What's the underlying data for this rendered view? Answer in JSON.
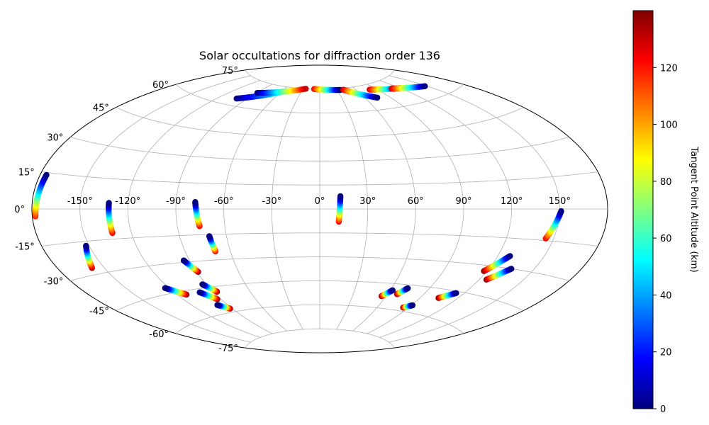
{
  "chart_data": {
    "type": "scatter",
    "projection": "aitoff",
    "title": "Solar occultations for diffraction order 136",
    "lon_ticks": [
      -150,
      -120,
      -90,
      -60,
      -30,
      0,
      30,
      60,
      90,
      120,
      150
    ],
    "lat_ticks": [
      -75,
      -60,
      -45,
      -30,
      -15,
      0,
      15,
      30,
      45,
      60,
      75
    ],
    "lon_tick_labels": [
      "-150°",
      "-120°",
      "-90°",
      "-60°",
      "-30°",
      "0°",
      "30°",
      "60°",
      "90°",
      "120°",
      "150°"
    ],
    "lat_tick_labels": [
      "-75°",
      "-60°",
      "-45°",
      "-30°",
      "-15°",
      "0°",
      "15°",
      "30°",
      "45°",
      "60°",
      "75°"
    ],
    "grid": true,
    "colorbar": {
      "label": "Tangent Point Altitude (km)",
      "colormap": "jet",
      "range": [
        0,
        140
      ],
      "ticks": [
        0,
        20,
        40,
        60,
        80,
        100,
        120
      ],
      "tick_labels": [
        "0",
        "20",
        "40",
        "60",
        "80",
        "100",
        "120"
      ]
    },
    "tracks": [
      {
        "lon": [
          -178,
          -176
        ],
        "lat": [
          -3,
          14
        ],
        "alt": [
          118,
          0
        ]
      },
      {
        "lon": [
          -132,
          -132
        ],
        "lat": [
          -12,
          3
        ],
        "alt": [
          125,
          0
        ]
      },
      {
        "lon": [
          -158,
          -152
        ],
        "lat": [
          -27,
          -17
        ],
        "alt": [
          135,
          0
        ]
      },
      {
        "lon": [
          -76,
          -78
        ],
        "lat": [
          -10,
          4
        ],
        "alt": [
          125,
          0
        ]
      },
      {
        "lon": [
          -70,
          -71
        ],
        "lat": [
          -25,
          -16
        ],
        "alt": [
          125,
          0
        ]
      },
      {
        "lon": [
          -89,
          -94
        ],
        "lat": [
          -36,
          -29
        ],
        "alt": [
          140,
          0
        ]
      },
      {
        "lon": [
          -113,
          -123
        ],
        "lat": [
          -47,
          -42
        ],
        "alt": [
          140,
          0
        ]
      },
      {
        "lon": [
          -87,
          -93
        ],
        "lat": [
          -48,
          -43
        ],
        "alt": [
          140,
          0
        ]
      },
      {
        "lon": [
          -93,
          -101
        ],
        "lat": [
          -52,
          -47
        ],
        "alt": [
          140,
          0
        ]
      },
      {
        "lon": [
          -92,
          -99
        ],
        "lat": [
          -58,
          -55
        ],
        "alt": [
          140,
          0
        ]
      },
      {
        "lon": [
          12,
          13
        ],
        "lat": [
          -8,
          8
        ],
        "alt": [
          125,
          0
        ]
      },
      {
        "lon": [
          145,
          151
        ],
        "lat": [
          -14,
          -1
        ],
        "alt": [
          125,
          0
        ]
      },
      {
        "lon": [
          118,
          128
        ],
        "lat": [
          -33,
          -24
        ],
        "alt": [
          140,
          0
        ]
      },
      {
        "lon": [
          125,
          135
        ],
        "lat": [
          -37,
          -30
        ],
        "alt": [
          140,
          0
        ]
      },
      {
        "lon": [
          105,
          114
        ],
        "lat": [
          -50,
          -46
        ],
        "alt": [
          140,
          0
        ]
      },
      {
        "lon": [
          85,
          91
        ],
        "lat": [
          -58,
          -56
        ],
        "alt": [
          140,
          0
        ]
      },
      {
        "lon": [
          56,
          62
        ],
        "lat": [
          -53,
          -49
        ],
        "alt": [
          140,
          0
        ]
      },
      {
        "lon": [
          68,
          73
        ],
        "lat": [
          -51,
          -47
        ],
        "alt": [
          140,
          0
        ]
      },
      {
        "lon": [
          -101,
          -58
        ],
        "lat": [
          64,
          72
        ],
        "alt": [
          0,
          60
        ]
      },
      {
        "lon": [
          -89,
          -25
        ],
        "lat": [
          69,
          75
        ],
        "alt": [
          0,
          130
        ]
      },
      {
        "lon": [
          -10,
          35
        ],
        "lat": [
          75,
          74
        ],
        "alt": [
          125,
          0
        ]
      },
      {
        "lon": [
          40,
          75
        ],
        "lat": [
          74,
          67
        ],
        "alt": [
          130,
          0
        ]
      },
      {
        "lon": [
          80,
          120
        ],
        "lat": [
          72,
          69
        ],
        "alt": [
          130,
          0
        ]
      },
      {
        "lon": [
          110,
          148
        ],
        "lat": [
          70,
          66
        ],
        "alt": [
          130,
          0
        ]
      }
    ]
  }
}
